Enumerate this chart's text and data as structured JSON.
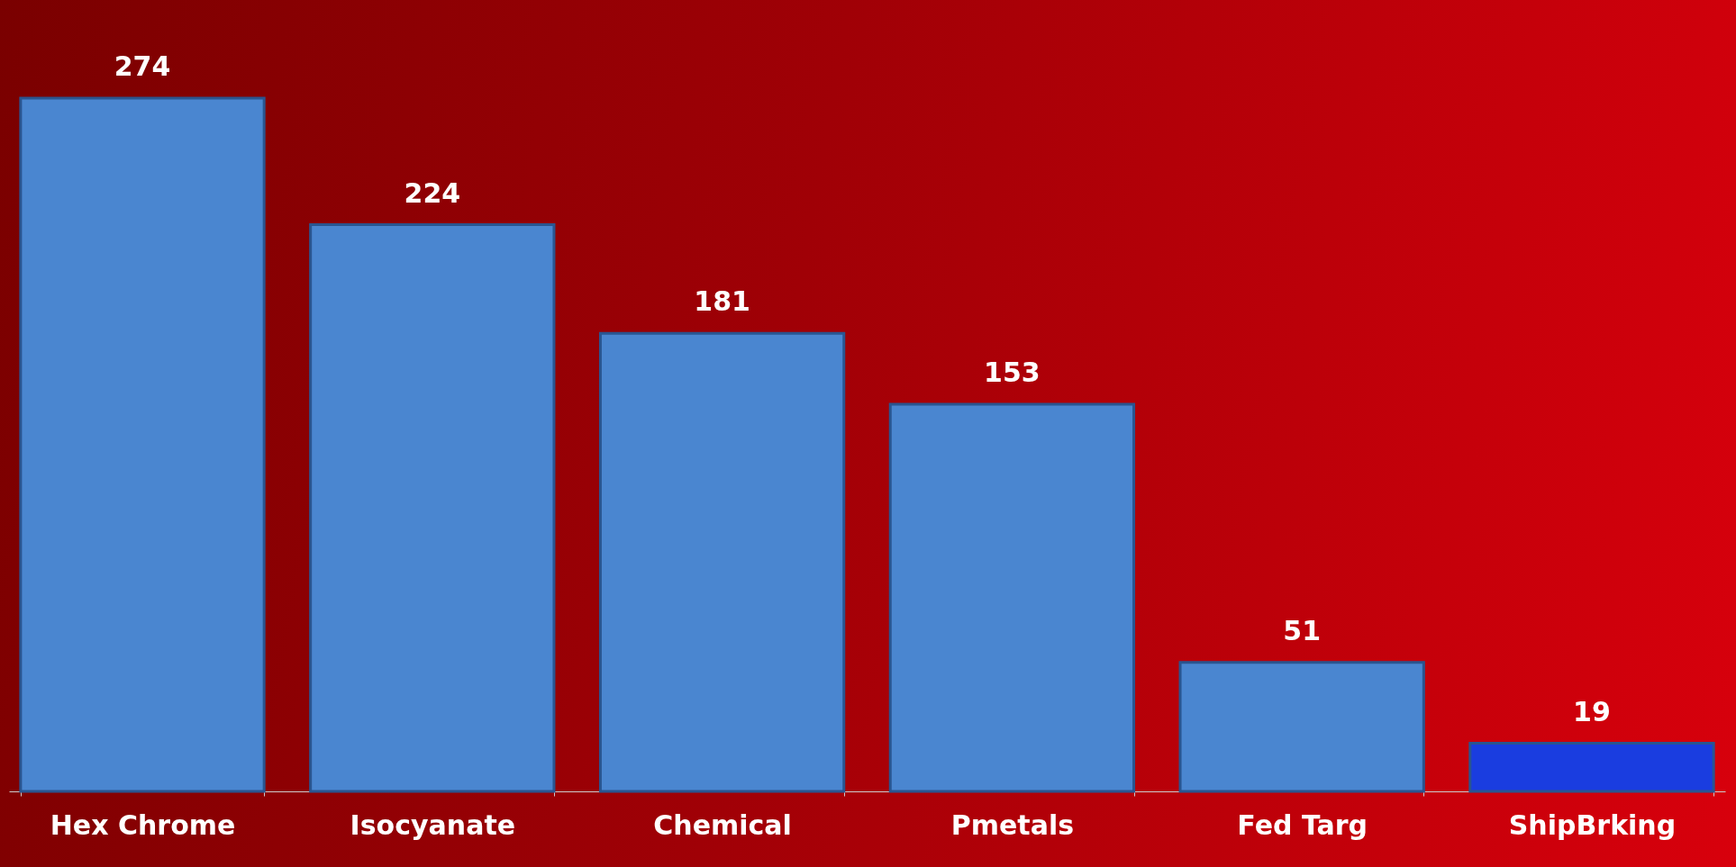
{
  "chart_data": {
    "type": "bar",
    "categories": [
      "Hex Chrome",
      "Isocyanate",
      "Chemical",
      "Pmetals",
      "Fed Targ",
      "ShipBrking"
    ],
    "values": [
      274,
      224,
      181,
      153,
      51,
      19
    ],
    "colors": [
      "#4a86d0",
      "#4a86d0",
      "#4a86d0",
      "#4a86d0",
      "#4a86d0",
      "#1a3de0"
    ],
    "data_labels": true,
    "grid": false
  }
}
